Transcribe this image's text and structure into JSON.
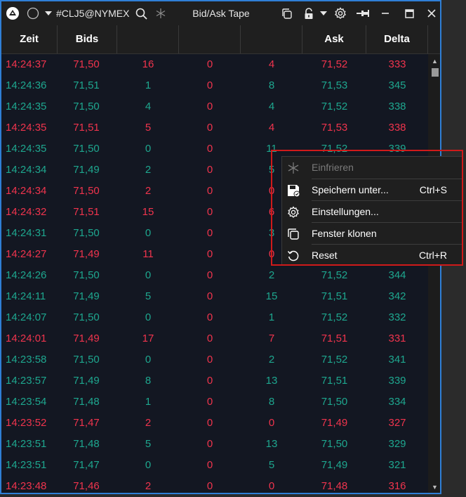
{
  "titlebar": {
    "symbol": "#CLJ5@NYMEX",
    "title": "Bid/Ask Tape",
    "icons": [
      "app-logo-icon",
      "circle-icon",
      "chevron-down-icon",
      "search-icon",
      "snowflake-icon",
      "clone-icon",
      "lock-icon",
      "chevron-down-icon",
      "gear-icon",
      "pin-icon",
      "minimize-icon",
      "maximize-icon",
      "close-icon"
    ]
  },
  "columns": [
    "Zeit",
    "Bids",
    "",
    "",
    "",
    "Ask",
    "Delta"
  ],
  "colors": {
    "red": "#f0344d",
    "green": "#1ea78f",
    "accent": "#2f7fd6"
  },
  "rows": [
    {
      "time": "14:24:37",
      "bid": "71,50",
      "bid_size": "16",
      "mid": "0",
      "ask_size": "4",
      "ask": "71,52",
      "delta": "333",
      "side": "red"
    },
    {
      "time": "14:24:36",
      "bid": "71,51",
      "bid_size": "1",
      "mid": "0",
      "ask_size": "8",
      "ask": "71,53",
      "delta": "345",
      "side": "green"
    },
    {
      "time": "14:24:35",
      "bid": "71,50",
      "bid_size": "4",
      "mid": "0",
      "ask_size": "4",
      "ask": "71,52",
      "delta": "338",
      "side": "green"
    },
    {
      "time": "14:24:35",
      "bid": "71,51",
      "bid_size": "5",
      "mid": "0",
      "ask_size": "4",
      "ask": "71,53",
      "delta": "338",
      "side": "red"
    },
    {
      "time": "14:24:35",
      "bid": "71,50",
      "bid_size": "0",
      "mid": "0",
      "ask_size": "11",
      "ask": "71,52",
      "delta": "339",
      "side": "green"
    },
    {
      "time": "14:24:34",
      "bid": "71,49",
      "bid_size": "2",
      "mid": "0",
      "ask_size": "5",
      "ask": "",
      "delta": "",
      "side": "green"
    },
    {
      "time": "14:24:34",
      "bid": "71,50",
      "bid_size": "2",
      "mid": "0",
      "ask_size": "0",
      "ask": "",
      "delta": "",
      "side": "red"
    },
    {
      "time": "14:24:32",
      "bid": "71,51",
      "bid_size": "15",
      "mid": "0",
      "ask_size": "6",
      "ask": "",
      "delta": "",
      "side": "red"
    },
    {
      "time": "14:24:31",
      "bid": "71,50",
      "bid_size": "0",
      "mid": "0",
      "ask_size": "3",
      "ask": "",
      "delta": "",
      "side": "green"
    },
    {
      "time": "14:24:27",
      "bid": "71,49",
      "bid_size": "11",
      "mid": "0",
      "ask_size": "0",
      "ask": "",
      "delta": "",
      "side": "red"
    },
    {
      "time": "14:24:26",
      "bid": "71,50",
      "bid_size": "0",
      "mid": "0",
      "ask_size": "2",
      "ask": "71,52",
      "delta": "344",
      "side": "green"
    },
    {
      "time": "14:24:11",
      "bid": "71,49",
      "bid_size": "5",
      "mid": "0",
      "ask_size": "15",
      "ask": "71,51",
      "delta": "342",
      "side": "green"
    },
    {
      "time": "14:24:07",
      "bid": "71,50",
      "bid_size": "0",
      "mid": "0",
      "ask_size": "1",
      "ask": "71,52",
      "delta": "332",
      "side": "green"
    },
    {
      "time": "14:24:01",
      "bid": "71,49",
      "bid_size": "17",
      "mid": "0",
      "ask_size": "7",
      "ask": "71,51",
      "delta": "331",
      "side": "red"
    },
    {
      "time": "14:23:58",
      "bid": "71,50",
      "bid_size": "0",
      "mid": "0",
      "ask_size": "2",
      "ask": "71,52",
      "delta": "341",
      "side": "green"
    },
    {
      "time": "14:23:57",
      "bid": "71,49",
      "bid_size": "8",
      "mid": "0",
      "ask_size": "13",
      "ask": "71,51",
      "delta": "339",
      "side": "green"
    },
    {
      "time": "14:23:54",
      "bid": "71,48",
      "bid_size": "1",
      "mid": "0",
      "ask_size": "8",
      "ask": "71,50",
      "delta": "334",
      "side": "green"
    },
    {
      "time": "14:23:52",
      "bid": "71,47",
      "bid_size": "2",
      "mid": "0",
      "ask_size": "0",
      "ask": "71,49",
      "delta": "327",
      "side": "red"
    },
    {
      "time": "14:23:51",
      "bid": "71,48",
      "bid_size": "5",
      "mid": "0",
      "ask_size": "13",
      "ask": "71,50",
      "delta": "329",
      "side": "green"
    },
    {
      "time": "14:23:51",
      "bid": "71,47",
      "bid_size": "0",
      "mid": "0",
      "ask_size": "5",
      "ask": "71,49",
      "delta": "321",
      "side": "green"
    },
    {
      "time": "14:23:48",
      "bid": "71,46",
      "bid_size": "2",
      "mid": "0",
      "ask_size": "0",
      "ask": "71,48",
      "delta": "316",
      "side": "red"
    }
  ],
  "context_menu": {
    "items": [
      {
        "label": "Einfrieren",
        "shortcut": "",
        "icon": "snowflake-icon",
        "disabled": true
      },
      {
        "label": "Speichern unter...",
        "shortcut": "Ctrl+S",
        "icon": "save-icon",
        "disabled": false
      },
      {
        "label": "Einstellungen...",
        "shortcut": "",
        "icon": "gear-icon",
        "disabled": false
      },
      {
        "label": "Fenster klonen",
        "shortcut": "",
        "icon": "clone-icon",
        "disabled": false
      },
      {
        "label": "Reset",
        "shortcut": "Ctrl+R",
        "icon": "reset-icon",
        "disabled": false
      }
    ]
  }
}
